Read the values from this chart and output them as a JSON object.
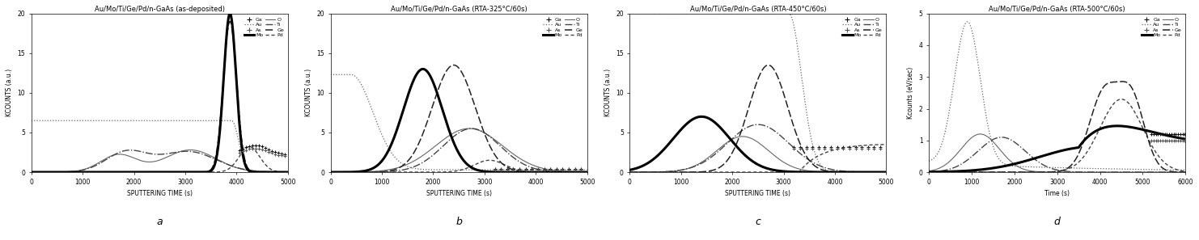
{
  "subplots": [
    {
      "title": "Au/Mo/Ti/Ge/Pd/n-GaAs (as-deposited)",
      "xlabel": "SPUTTERING TIME (s)",
      "ylabel": "KCOUNTS (a.u.)",
      "xlim": [
        0,
        5000
      ],
      "ylim": [
        0,
        20
      ],
      "yticks": [
        0,
        5,
        10,
        15,
        20
      ],
      "label": "a"
    },
    {
      "title": "Au/Mo/Ti/Ge/Pd/n-GaAs (RTA-325°C/60s)",
      "xlabel": "SPUTTERING TIME (s)",
      "ylabel": "KCOUNTS (a.u.)",
      "xlim": [
        0,
        5000
      ],
      "ylim": [
        0,
        20
      ],
      "yticks": [
        0,
        5,
        10,
        15,
        20
      ],
      "label": "b"
    },
    {
      "title": "Au/Mo/Ti/Ge/Pd/n-GaAs (RTA-450°C/60s)",
      "xlabel": "SPUTTERING TIME (s)",
      "ylabel": "KCOUNTS (a.u.)",
      "xlim": [
        0,
        5000
      ],
      "ylim": [
        0,
        20
      ],
      "yticks": [
        0,
        5,
        10,
        15,
        20
      ],
      "label": "c"
    },
    {
      "title": "Au/Mo/Ti/Ge/Pd/n-GaAs (RTA-500°C/60s)",
      "xlabel": "Time (s)",
      "ylabel": "Kcounts (eV/sec)",
      "xlim": [
        0,
        6000
      ],
      "ylim": [
        0,
        5
      ],
      "yticks": [
        0,
        1,
        2,
        3,
        4,
        5
      ],
      "label": "d"
    }
  ],
  "background": "#ffffff",
  "paper_background": "#ffffff"
}
